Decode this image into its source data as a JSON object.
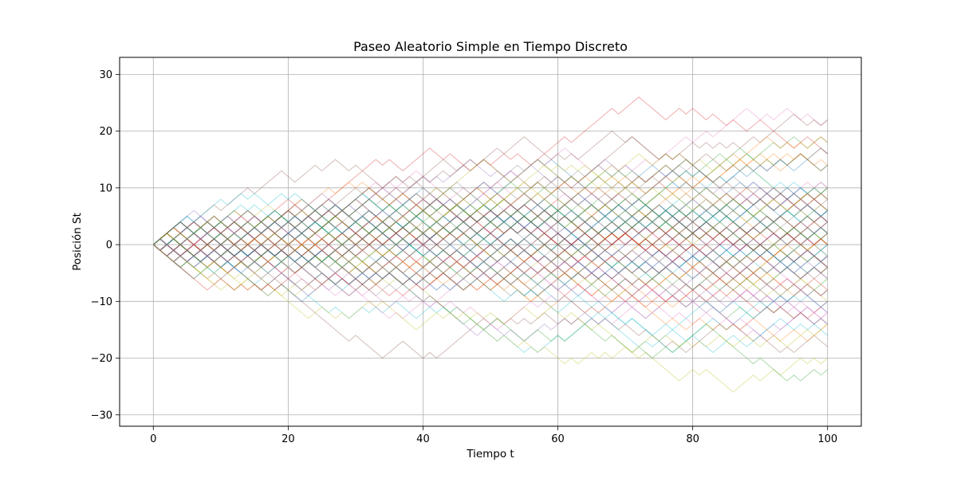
{
  "chart_data": {
    "type": "line",
    "title": "Paseo Aleatorio Simple en Tiempo Discreto",
    "xlabel": "Tiempo t",
    "ylabel": "Posición St",
    "xlim": [
      -5,
      105
    ],
    "ylim": [
      -32,
      33
    ],
    "xticks": [
      0,
      20,
      40,
      60,
      80,
      100
    ],
    "yticks": [
      -30,
      -20,
      -10,
      0,
      10,
      20,
      30
    ],
    "xtick_labels": [
      "0",
      "20",
      "40",
      "60",
      "80",
      "100"
    ],
    "ytick_labels": [
      "−30",
      "−20",
      "−10",
      "0",
      "10",
      "20",
      "30"
    ],
    "grid": true,
    "legend": "none",
    "steps": 100,
    "num_paths": 100,
    "step_values": [
      -1,
      1
    ],
    "start_value": 0,
    "line_alpha": 0.35,
    "palette": [
      "#1f77b4",
      "#ff7f0e",
      "#2ca02c",
      "#d62728",
      "#9467bd",
      "#8c564b",
      "#e377c2",
      "#7f7f7f",
      "#bcbd22",
      "#17becf"
    ]
  }
}
